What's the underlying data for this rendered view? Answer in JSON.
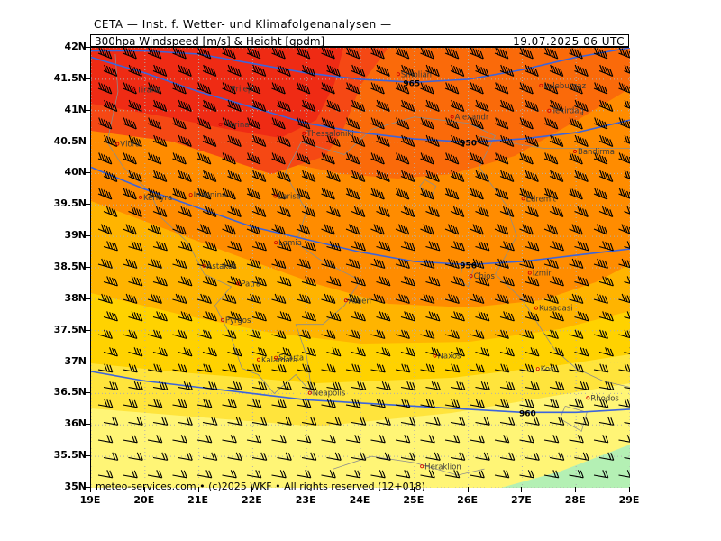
{
  "header": {
    "title": "CETA — Inst. f. Wetter- und Klimafolgenanalysen —",
    "field": "300hpa Windspeed [m/s] & Height [gpdm]",
    "datetime": "19.07.2025 06 UTC"
  },
  "axes": {
    "lat_labels": [
      "42N",
      "41.5N",
      "41N",
      "40.5N",
      "40N",
      "39.5N",
      "39N",
      "38.5N",
      "38N",
      "37.5N",
      "37N",
      "36.5N",
      "36N",
      "35.5N",
      "35N"
    ],
    "lon_labels": [
      "19E",
      "20E",
      "21E",
      "22E",
      "23E",
      "24E",
      "25E",
      "26E",
      "27E",
      "28E",
      "29E"
    ],
    "lat_range": [
      35,
      42
    ],
    "lon_range": [
      19,
      29
    ]
  },
  "contours": [
    {
      "label": "950"
    },
    {
      "label": "956"
    },
    {
      "label": "960"
    },
    {
      "label": "965"
    }
  ],
  "places": [
    {
      "name": "Tirana",
      "lon": 19.8,
      "lat": 41.33
    },
    {
      "name": "Prilep",
      "lon": 21.55,
      "lat": 41.35
    },
    {
      "name": "Smolian",
      "lon": 24.7,
      "lat": 41.58
    },
    {
      "name": "Luleburgaz",
      "lon": 27.35,
      "lat": 41.4
    },
    {
      "name": "Alexandr",
      "lon": 25.7,
      "lat": 40.9
    },
    {
      "name": "Tekirdag",
      "lon": 27.5,
      "lat": 41.0
    },
    {
      "name": "Florina",
      "lon": 21.4,
      "lat": 40.78
    },
    {
      "name": "Thessaloniki",
      "lon": 22.95,
      "lat": 40.64
    },
    {
      "name": "Vlora",
      "lon": 19.49,
      "lat": 40.47
    },
    {
      "name": "Bandirma",
      "lon": 27.98,
      "lat": 40.35
    },
    {
      "name": "Ioannina",
      "lon": 20.85,
      "lat": 39.66
    },
    {
      "name": "Larisa",
      "lon": 22.42,
      "lat": 39.64
    },
    {
      "name": "Kerkyra",
      "lon": 19.92,
      "lat": 39.62
    },
    {
      "name": "Edremit",
      "lon": 27.02,
      "lat": 39.6
    },
    {
      "name": "Lamia",
      "lon": 22.43,
      "lat": 38.9
    },
    {
      "name": "Astakos",
      "lon": 21.1,
      "lat": 38.53
    },
    {
      "name": "Chios",
      "lon": 26.05,
      "lat": 38.37
    },
    {
      "name": "Izmir",
      "lon": 27.14,
      "lat": 38.42
    },
    {
      "name": "Patra",
      "lon": 21.73,
      "lat": 38.25
    },
    {
      "name": "Athen",
      "lon": 23.73,
      "lat": 37.98
    },
    {
      "name": "Pyrgos",
      "lon": 21.44,
      "lat": 37.67
    },
    {
      "name": "Kusadasi",
      "lon": 27.26,
      "lat": 37.86
    },
    {
      "name": "Naxos",
      "lon": 25.38,
      "lat": 37.1
    },
    {
      "name": "Kalamata",
      "lon": 22.11,
      "lat": 37.04
    },
    {
      "name": "Sparta",
      "lon": 22.43,
      "lat": 37.07
    },
    {
      "name": "Kos",
      "lon": 27.29,
      "lat": 36.89
    },
    {
      "name": "Neapolis",
      "lon": 23.06,
      "lat": 36.51
    },
    {
      "name": "Rhodos",
      "lon": 28.22,
      "lat": 36.43
    },
    {
      "name": "Heraklion",
      "lon": 25.14,
      "lat": 35.34
    }
  ],
  "footer": {
    "copyright": "meteo-services.com • (c)2025 WKF • All rights reserved (12+018)"
  },
  "legend_colors": {
    "red": "#ef2b14",
    "red_orange": "#f54814",
    "orange_red": "#fa6a0a",
    "orange": "#ff8c00",
    "orange_yellow": "#ffb400",
    "yellow_orange": "#ffd200",
    "yellow": "#ffe43c",
    "pale_yellow": "#fff576",
    "light_green": "#b4f0b4",
    "contour_blue": "#3c64dc"
  }
}
